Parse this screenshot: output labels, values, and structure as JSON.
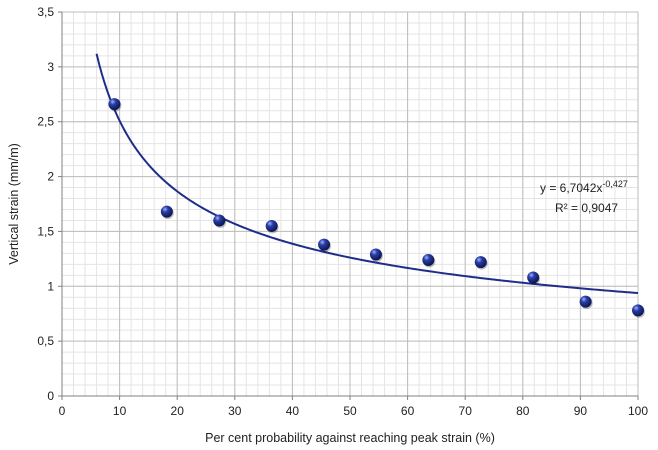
{
  "chart_data": {
    "type": "scatter",
    "xlabel": "Per cent probability against reaching peak strain (%)",
    "ylabel": "Vertical strain (mm/m)",
    "xlim": [
      0,
      100
    ],
    "ylim": [
      0,
      3.5
    ],
    "x_ticks": [
      0,
      10,
      20,
      30,
      40,
      50,
      60,
      70,
      80,
      90,
      100
    ],
    "y_ticks": [
      0,
      0.5,
      1,
      1.5,
      2,
      2.5,
      3,
      3.5
    ],
    "x_tick_labels": [
      "0",
      "10",
      "20",
      "30",
      "40",
      "50",
      "60",
      "70",
      "80",
      "90",
      "100"
    ],
    "y_tick_labels": [
      "0",
      "0,5",
      "1",
      "1,5",
      "2",
      "2,5",
      "3",
      "3,5"
    ],
    "grid": true,
    "minor_grid": true,
    "legend": false,
    "marker_color": "#1f2d8a",
    "series": [
      {
        "points": [
          {
            "x": 9.1,
            "y": 2.66
          },
          {
            "x": 18.2,
            "y": 1.68
          },
          {
            "x": 27.3,
            "y": 1.6
          },
          {
            "x": 36.4,
            "y": 1.55
          },
          {
            "x": 45.5,
            "y": 1.38
          },
          {
            "x": 54.5,
            "y": 1.29
          },
          {
            "x": 63.6,
            "y": 1.24
          },
          {
            "x": 72.7,
            "y": 1.22
          },
          {
            "x": 81.8,
            "y": 1.08
          },
          {
            "x": 90.9,
            "y": 0.86
          },
          {
            "x": 100,
            "y": 0.78
          }
        ]
      }
    ],
    "trendline": {
      "type": "power",
      "coefficient": 6.7042,
      "exponent": -0.427,
      "x_range": [
        6,
        100
      ],
      "color": "#1f2d8a",
      "equation_prefix": "y = 6,7042x",
      "equation_exponent": "-0,427",
      "r_squared_label": "R² = 0,9047"
    }
  }
}
